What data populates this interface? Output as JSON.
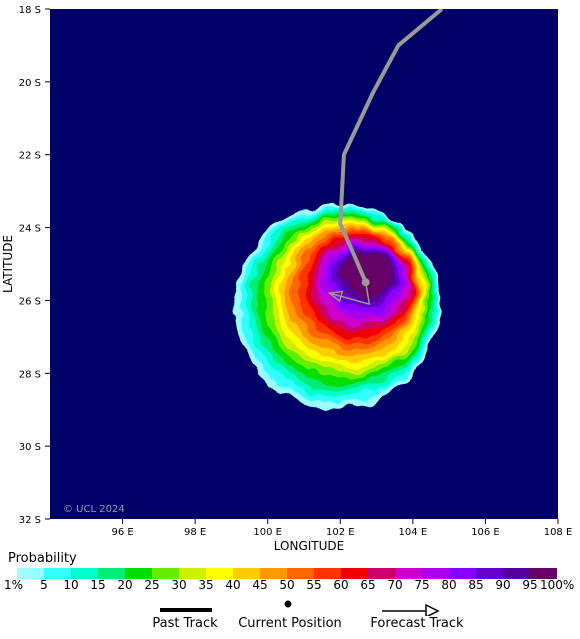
{
  "map": {
    "xlabel": "LONGITUDE",
    "ylabel": "LATITUDE",
    "x_ticks": [
      "96 E",
      "98 E",
      "100 E",
      "102 E",
      "104 E",
      "106 E",
      "108 E"
    ],
    "y_ticks": [
      "18 S",
      "20 S",
      "22 S",
      "24 S",
      "26 S",
      "28 S",
      "30 S",
      "32 S"
    ],
    "lon_range": [
      94.0,
      108.0
    ],
    "lat_range": [
      -18.0,
      -32.0
    ],
    "copyright": "© UCL 2024",
    "background_color": "#000066",
    "past_track_color": "#999999",
    "forecast_track_color": "#999999"
  },
  "chart_data": {
    "type": "heatmap",
    "title": "",
    "xlabel": "LONGITUDE",
    "ylabel": "LATITUDE",
    "xlim": [
      94.0,
      108.0
    ],
    "ylim": [
      -32.0,
      -18.0
    ],
    "storm_position": {
      "lon": 102.7,
      "lat": -25.5
    },
    "past_track": [
      {
        "lon": 104.8,
        "lat": -18.0
      },
      {
        "lon": 103.6,
        "lat": -19.0
      },
      {
        "lon": 102.9,
        "lat": -20.3
      },
      {
        "lon": 102.1,
        "lat": -22.0
      },
      {
        "lon": 102.0,
        "lat": -23.9
      },
      {
        "lon": 102.4,
        "lat": -24.8
      },
      {
        "lon": 102.7,
        "lat": -25.5
      }
    ],
    "forecast_track": [
      {
        "lon": 102.7,
        "lat": -25.5
      },
      {
        "lon": 102.8,
        "lat": -26.1
      },
      {
        "lon": 101.7,
        "lat": -25.8
      }
    ],
    "probability_levels": [
      1,
      5,
      10,
      15,
      20,
      25,
      30,
      35,
      40,
      45,
      50,
      55,
      60,
      65,
      70,
      75,
      80,
      85,
      90,
      95,
      100
    ],
    "probability_colors": [
      "#99ffff",
      "#33ffff",
      "#00ffcc",
      "#00ee77",
      "#00dd00",
      "#66ee00",
      "#ccf000",
      "#ffff00",
      "#ffcc00",
      "#ff9900",
      "#ff6600",
      "#ff3300",
      "#ee0000",
      "#cc0066",
      "#cc00cc",
      "#aa00ee",
      "#8800ff",
      "#6600cc",
      "#550099",
      "#660066"
    ]
  },
  "legend": {
    "title": "Probability",
    "labels": [
      "1%",
      "5",
      "10",
      "15",
      "20",
      "25",
      "30",
      "35",
      "40",
      "45",
      "50",
      "55",
      "60",
      "65",
      "70",
      "75",
      "80",
      "85",
      "90",
      "95",
      "100%"
    ]
  },
  "key": {
    "past_track": "Past Track",
    "current_position": "Current Position",
    "forecast_track": "Forecast Track"
  }
}
